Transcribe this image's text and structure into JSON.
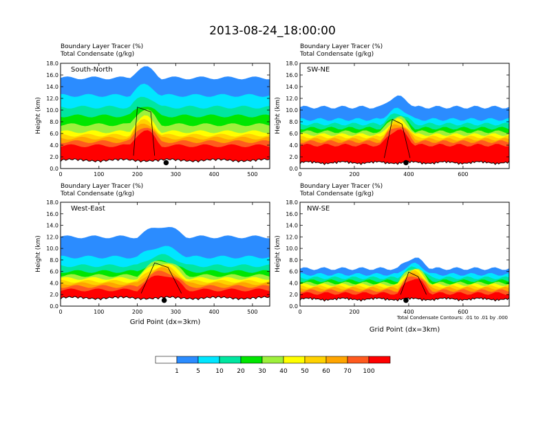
{
  "title": "2013-08-24_18:00:00",
  "colors": {
    "white": "#ffffff",
    "c1": "#2b8cff",
    "c5": "#00e6ff",
    "c10": "#00e6a0",
    "c20": "#00e600",
    "c30": "#9ef03c",
    "c40": "#ffff00",
    "c50": "#ffd200",
    "c60": "#ffa500",
    "c70": "#ff5a1e",
    "c100": "#ff0000",
    "terrain": "#000000",
    "contour": "#000000"
  },
  "chart_data": [
    {
      "type": "contour",
      "panel": "South-North",
      "header": [
        "Boundary Layer Tracer   (%)",
        "Total Condensate   (g/kg)"
      ],
      "xlim": [
        0,
        545
      ],
      "xticks": [
        0,
        100,
        200,
        300,
        400,
        500
      ],
      "ylim": [
        0,
        18
      ],
      "yticks": [
        "0.0",
        "2.0",
        "4.0",
        "6.0",
        "8.0",
        "10.0",
        "12.0",
        "14.0",
        "16.0",
        "18.0"
      ],
      "ylabel": "Height (km)",
      "xlabel": "",
      "marker_x": 275,
      "terrain_base_km": 1.2,
      "tops_km": {
        "c100": 3.9,
        "c70": 4.6,
        "c60": 5.2,
        "c50": 5.7,
        "c40": 6.3,
        "c30": 7.5,
        "c20": 9.0,
        "c10": 10.5,
        "c5": 12.5,
        "c1": 15.5
      },
      "convective_x": [
        180,
        260
      ]
    },
    {
      "type": "contour",
      "panel": "SW-NE",
      "header": [
        "Boundary Layer Tracer   (%)",
        "Total Condensate   (g/kg)"
      ],
      "xlim": [
        0,
        770
      ],
      "xticks": [
        0,
        200,
        400,
        600
      ],
      "ylim": [
        0,
        18
      ],
      "yticks": [
        "0.0",
        "2.0",
        "4.0",
        "6.0",
        "8.0",
        "10.0",
        "12.0",
        "14.0",
        "16.0",
        "18.0"
      ],
      "ylabel": "Height (km)",
      "xlabel": "",
      "marker_x": 390,
      "terrain_base_km": 0.8,
      "tops_km": {
        "c100": 4.0,
        "c70": 4.6,
        "c60": 5.0,
        "c50": 5.4,
        "c40": 5.8,
        "c30": 6.3,
        "c20": 6.9,
        "c10": 7.6,
        "c5": 8.4,
        "c1": 10.5
      },
      "convective_x": [
        300,
        420
      ]
    },
    {
      "type": "contour",
      "panel": "West-East",
      "header": [
        "Boundary Layer Tracer   (%)",
        "Total Condensate   (g/kg)"
      ],
      "xlim": [
        0,
        545
      ],
      "xticks": [
        0,
        100,
        200,
        300,
        400,
        500
      ],
      "ylim": [
        0,
        18
      ],
      "yticks": [
        "0.0",
        "2.0",
        "4.0",
        "6.0",
        "8.0",
        "10.0",
        "12.0",
        "14.0",
        "16.0",
        "18.0"
      ],
      "ylabel": "Height (km)",
      "xlabel": "Grid Point (dx=3km)",
      "marker_x": 270,
      "terrain_base_km": 1.2,
      "tops_km": {
        "c100": 2.8,
        "c70": 3.4,
        "c60": 3.9,
        "c50": 4.3,
        "c40": 4.8,
        "c30": 5.3,
        "c20": 6.0,
        "c10": 7.0,
        "c5": 8.5,
        "c1": 12.0
      },
      "convective_x": [
        200,
        330
      ]
    },
    {
      "type": "contour",
      "panel": "NW-SE",
      "header": [
        "Boundary Layer Tracer   (%)",
        "Total Condensate   (g/kg)"
      ],
      "xlim": [
        0,
        770
      ],
      "xticks": [
        0,
        200,
        400,
        600
      ],
      "ylim": [
        0,
        18
      ],
      "yticks": [
        "0.0",
        "2.0",
        "4.0",
        "6.0",
        "8.0",
        "10.0",
        "12.0",
        "14.0",
        "16.0",
        "18.0"
      ],
      "ylabel": "Height (km)",
      "xlabel": "Grid Point (dx=3km)",
      "marker_x": 390,
      "terrain_base_km": 1.0,
      "tops_km": {
        "c100": 2.2,
        "c70": 2.7,
        "c60": 3.1,
        "c50": 3.4,
        "c40": 3.7,
        "c30": 4.0,
        "c20": 4.4,
        "c10": 4.9,
        "c5": 5.5,
        "c1": 6.5
      },
      "convective_x": [
        360,
        480
      ],
      "note": "Total Condensate Contours: .01 to .01 by .000"
    }
  ],
  "colorbar": {
    "labels": [
      "1",
      "5",
      "10",
      "20",
      "30",
      "40",
      "50",
      "60",
      "70",
      "100"
    ]
  }
}
